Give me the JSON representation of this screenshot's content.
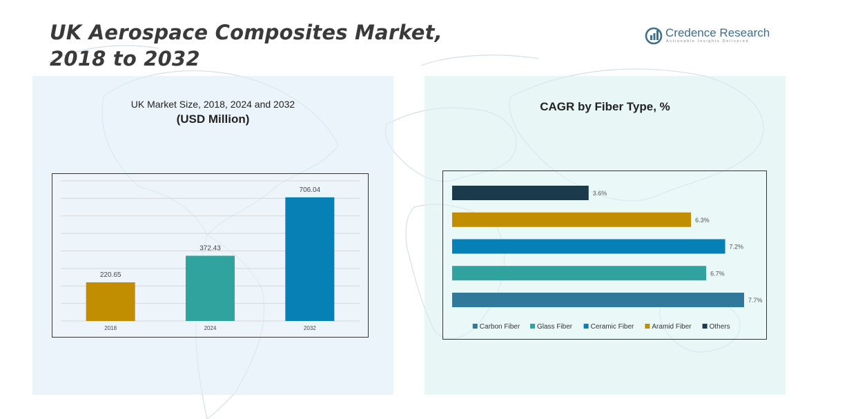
{
  "title": {
    "line1": "UK Aerospace Composites Market,",
    "line2": "2018 to 2032"
  },
  "logo": {
    "brand": "Credence Research",
    "tagline": "Actionable Insights Delivered",
    "icon": "bar-chart-logo-icon"
  },
  "colors": {
    "gold": "#C08E00",
    "teal": "#31A39F",
    "blue": "#0680B5",
    "steel": "#31799B",
    "navy": "#1B3A4B"
  },
  "left_panel": {
    "title": "UK Market Size, 2018, 2024 and 2032",
    "subtitle": "(USD Million)"
  },
  "right_panel": {
    "title": "CAGR by Fiber Type, %"
  },
  "chart_data": [
    {
      "type": "bar",
      "title": "UK Market Size, 2018, 2024 and 2032",
      "subtitle": "(USD Million)",
      "categories": [
        "2018",
        "2024",
        "2032"
      ],
      "values": [
        220.65,
        372.43,
        706.04
      ],
      "value_labels": [
        "220.65",
        "372.43",
        "706.04"
      ],
      "colors": [
        "#C08E00",
        "#31A39F",
        "#0680B5"
      ],
      "ylim": [
        0,
        800
      ],
      "grid": true
    },
    {
      "type": "bar",
      "orientation": "horizontal",
      "title": "CAGR by Fiber Type, %",
      "categories": [
        "Others",
        "Aramid Fiber",
        "Ceramic Fiber",
        "Glass Fiber",
        "Carbon Fiber"
      ],
      "values": [
        3.6,
        6.3,
        7.2,
        6.7,
        7.7
      ],
      "value_labels": [
        "3.6%",
        "6.3%",
        "7.2%",
        "6.7%",
        "7.7%"
      ],
      "colors": [
        "#1B3A4B",
        "#C08E00",
        "#0680B5",
        "#31A39F",
        "#31799B"
      ],
      "xlim": [
        0,
        8
      ],
      "legend": {
        "position": "bottom",
        "entries": [
          "Carbon Fiber",
          "Glass Fiber",
          "Ceramic Fiber",
          "Aramid Fiber",
          "Others"
        ],
        "colors": [
          "#31799B",
          "#31A39F",
          "#0680B5",
          "#C08E00",
          "#1B3A4B"
        ]
      }
    }
  ]
}
